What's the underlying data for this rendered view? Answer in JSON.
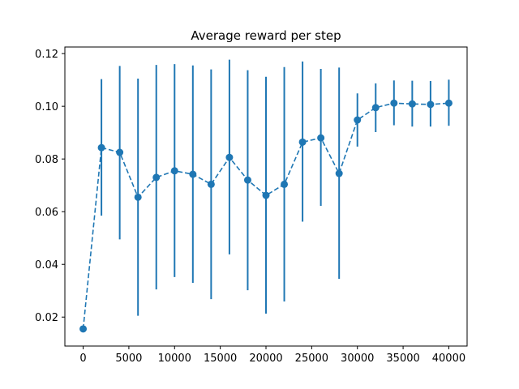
{
  "chart_data": {
    "type": "line",
    "title": "Average reward per step",
    "xlabel": "",
    "ylabel": "",
    "xlim": [
      -2000,
      42000
    ],
    "ylim": [
      0.009,
      0.1225
    ],
    "xticks": [
      0,
      5000,
      10000,
      15000,
      20000,
      25000,
      30000,
      35000,
      40000
    ],
    "yticks": [
      0.02,
      0.04,
      0.06,
      0.08,
      0.1,
      0.12
    ],
    "ytick_labels": [
      "0.02",
      "0.04",
      "0.06",
      "0.08",
      "0.10",
      "0.12"
    ],
    "grid": false,
    "series": [
      {
        "color": "#1f77b4",
        "linestyle": "dashed",
        "marker": "circle",
        "x": [
          0,
          2000,
          4000,
          6000,
          8000,
          10000,
          12000,
          14000,
          16000,
          18000,
          20000,
          22000,
          24000,
          26000,
          28000,
          30000,
          32000,
          34000,
          36000,
          38000,
          40000
        ],
        "y": [
          0.0155,
          0.0843,
          0.0825,
          0.0655,
          0.073,
          0.0755,
          0.0742,
          0.0704,
          0.0806,
          0.072,
          0.0662,
          0.0704,
          0.0864,
          0.088,
          0.0745,
          0.0948,
          0.0995,
          0.1012,
          0.1009,
          0.1007,
          0.1012
        ],
        "y_lower": [
          0.0155,
          0.0585,
          0.0495,
          0.0205,
          0.0305,
          0.0352,
          0.033,
          0.0268,
          0.0438,
          0.0302,
          0.0213,
          0.0259,
          0.0562,
          0.0622,
          0.0345,
          0.0847,
          0.0902,
          0.0928,
          0.0923,
          0.0923,
          0.0926
        ],
        "y_upper": [
          0.0155,
          0.1103,
          0.1153,
          0.1105,
          0.1157,
          0.116,
          0.1155,
          0.114,
          0.1177,
          0.1137,
          0.1112,
          0.1149,
          0.117,
          0.1142,
          0.1147,
          0.1049,
          0.1087,
          0.1098,
          0.1097,
          0.1096,
          0.1101
        ]
      }
    ]
  }
}
